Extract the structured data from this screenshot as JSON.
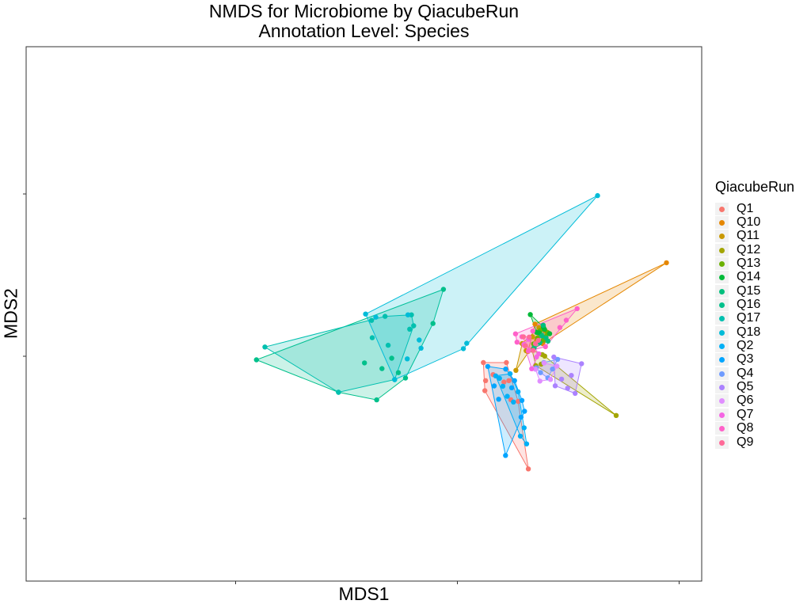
{
  "chart_data": {
    "type": "scatter",
    "title": "NMDS for Microbiome by QiacubeRun",
    "subtitle": "Annotation Level: Species",
    "xlabel": "MDS1",
    "ylabel": "MDS2",
    "xlim": [
      -1.0,
      1.0
    ],
    "ylim": [
      -1.0,
      1.0
    ],
    "grid": false,
    "hulls": true,
    "legend": {
      "title": "QiacubeRun",
      "placement": "right"
    },
    "series": [
      {
        "name": "Q1",
        "color": "#F8766D",
        "points": [
          [
            0.117,
            -0.039
          ],
          [
            0.221,
            -0.039
          ],
          [
            0.161,
            -0.113
          ],
          [
            0.124,
            -0.212
          ],
          [
            0.127,
            -0.15
          ],
          [
            0.32,
            -0.694
          ],
          [
            0.232,
            -0.15
          ],
          [
            0.241,
            -0.268
          ],
          [
            0.21,
            -0.159
          ],
          [
            0.274,
            -0.278
          ]
        ]
      },
      {
        "name": "Q10",
        "color": "#E58700",
        "points": [
          [
            0.943,
            0.576
          ],
          [
            0.35,
            0.198
          ],
          [
            0.397,
            0.155
          ],
          [
            0.385,
            0.078
          ],
          [
            0.318,
            0.029
          ]
        ]
      },
      {
        "name": "Q11",
        "color": "#C99800",
        "points": [
          [
            0.264,
            -0.087
          ],
          [
            0.368,
            0.177
          ],
          [
            0.31,
            0.034
          ],
          [
            0.339,
            0.12
          ],
          [
            0.357,
            0.097
          ],
          [
            0.292,
            0.078
          ]
        ]
      },
      {
        "name": "Q12",
        "color": "#A3A500",
        "points": [
          [
            0.716,
            -0.365
          ],
          [
            0.378,
            -0.049
          ],
          [
            0.337,
            0.038
          ],
          [
            0.383,
            0.01
          ],
          [
            0.354,
            -0.058
          ],
          [
            0.394,
            0.001
          ]
        ]
      },
      {
        "name": "Q13",
        "color": "#6BB100",
        "points": [
          [
            0.373,
            0.158
          ],
          [
            0.406,
            0.147
          ],
          [
            0.361,
            0.112
          ],
          [
            0.387,
            0.099
          ],
          [
            0.344,
            0.076
          ],
          [
            0.399,
            0.122
          ]
        ]
      },
      {
        "name": "Q14",
        "color": "#00BA38",
        "points": [
          [
            0.329,
            0.257
          ],
          [
            0.388,
            0.18
          ],
          [
            0.416,
            0.139
          ],
          [
            0.369,
            0.144
          ],
          [
            0.393,
            0.166
          ],
          [
            0.358,
            0.147
          ]
        ]
      },
      {
        "name": "Q15",
        "color": "#00BF7D",
        "points": [
          [
            0.387,
            0.191
          ],
          [
            0.409,
            0.093
          ],
          [
            0.346,
            0.052
          ],
          [
            0.381,
            0.126
          ],
          [
            0.4,
            0.113
          ],
          [
            0.372,
            0.084
          ]
        ]
      },
      {
        "name": "Q16",
        "color": "#00C08B",
        "points": [
          [
            -0.906,
            -0.022
          ],
          [
            -0.536,
            -0.222
          ],
          [
            -0.364,
            -0.269
          ],
          [
            -0.063,
            0.412
          ],
          [
            -0.11,
            0.202
          ],
          [
            -0.266,
            -0.101
          ],
          [
            -0.296,
            -0.012
          ],
          [
            -0.234,
            -0.134
          ],
          [
            -0.34,
            -0.076
          ],
          [
            -0.419,
            -0.041
          ]
        ]
      },
      {
        "name": "Q17",
        "color": "#00C0AF",
        "points": [
          [
            -0.868,
            0.057
          ],
          [
            -0.536,
            -0.222
          ],
          [
            -0.283,
            -0.144
          ],
          [
            -0.207,
            0.255
          ],
          [
            -0.387,
            0.221
          ],
          [
            -0.384,
            0.114
          ],
          [
            -0.326,
            0.246
          ],
          [
            -0.197,
            0.188
          ],
          [
            -0.215,
            0.167
          ],
          [
            -0.312,
            0.068
          ]
        ]
      },
      {
        "name": "Q18",
        "color": "#00BCD8",
        "points": [
          [
            0.632,
            0.99
          ],
          [
            0.042,
            0.08
          ],
          [
            0.027,
            0.047
          ],
          [
            -0.283,
            -0.144
          ],
          [
            -0.414,
            0.26
          ],
          [
            -0.223,
            0.255
          ],
          [
            -0.172,
            0.1
          ],
          [
            -0.226,
            -0.016
          ],
          [
            -0.164,
            0.05
          ],
          [
            -0.368,
            0.241
          ]
        ]
      },
      {
        "name": "Q2",
        "color": "#00B0F6",
        "points": [
          [
            0.173,
            -0.121
          ],
          [
            0.238,
            -0.108
          ],
          [
            0.274,
            -0.219
          ],
          [
            0.312,
            -0.54
          ],
          [
            0.284,
            -0.492
          ],
          [
            0.253,
            -0.282
          ],
          [
            0.205,
            -0.185
          ],
          [
            0.19,
            -0.136
          ],
          [
            0.225,
            -0.247
          ],
          [
            0.301,
            -0.441
          ]
        ]
      },
      {
        "name": "Q3",
        "color": "#00A5FF",
        "points": [
          [
            0.137,
            -0.063
          ],
          [
            0.218,
            -0.079
          ],
          [
            0.258,
            -0.15
          ],
          [
            0.303,
            -0.339
          ],
          [
            0.287,
            -0.375
          ],
          [
            0.217,
            -0.611
          ],
          [
            0.186,
            -0.265
          ],
          [
            0.166,
            -0.183
          ],
          [
            0.245,
            -0.194
          ],
          [
            0.291,
            -0.272
          ]
        ]
      },
      {
        "name": "Q4",
        "color": "#6E9BFF",
        "points": [
          [
            0.39,
            -0.039
          ],
          [
            0.452,
            -0.019
          ],
          [
            0.408,
            -0.133
          ],
          [
            0.375,
            -0.101
          ],
          [
            0.355,
            -0.071
          ],
          [
            0.429,
            -0.079
          ]
        ]
      },
      {
        "name": "Q5",
        "color": "#AB82FF",
        "points": [
          [
            0.435,
            -0.005
          ],
          [
            0.56,
            -0.046
          ],
          [
            0.531,
            -0.229
          ],
          [
            0.497,
            -0.197
          ],
          [
            0.47,
            -0.141
          ],
          [
            0.441,
            -0.182
          ],
          [
            0.514,
            -0.118
          ]
        ]
      },
      {
        "name": "Q6",
        "color": "#E08EFF",
        "points": [
          [
            0.352,
            -0.08
          ],
          [
            0.372,
            -0.153
          ],
          [
            0.42,
            -0.143
          ],
          [
            0.449,
            -0.061
          ],
          [
            0.391,
            -0.042
          ]
        ]
      },
      {
        "name": "Q7",
        "color": "#F565E3",
        "points": [
          [
            0.321,
            0.105
          ],
          [
            0.357,
            -0.005
          ],
          [
            0.335,
            -0.077
          ],
          [
            0.322,
            0.037
          ],
          [
            0.367,
            0.015
          ],
          [
            0.3,
            0.073
          ]
        ]
      },
      {
        "name": "Q8",
        "color": "#FF61C9",
        "points": [
          [
            0.54,
            0.293
          ],
          [
            0.262,
            0.138
          ],
          [
            0.269,
            0.087
          ],
          [
            0.32,
            0.032
          ],
          [
            0.397,
            0.059
          ],
          [
            0.491,
            0.222
          ],
          [
            0.291,
            0.12
          ],
          [
            0.462,
            0.177
          ],
          [
            0.34,
            0.155
          ]
        ]
      },
      {
        "name": "Q9",
        "color": "#FF6A98",
        "points": [
          [
            0.298,
            0.12
          ],
          [
            0.365,
            0.098
          ],
          [
            0.342,
            0.036
          ],
          [
            0.307,
            0.065
          ],
          [
            0.352,
            0.077
          ],
          [
            0.324,
            0.118
          ]
        ]
      }
    ]
  }
}
